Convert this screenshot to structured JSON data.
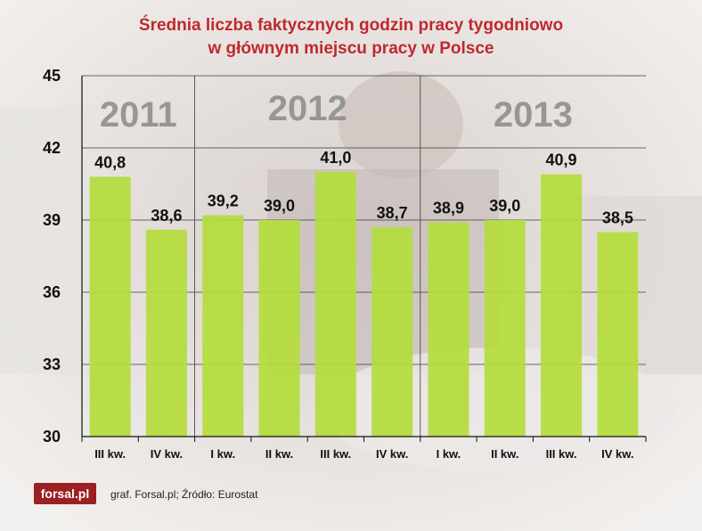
{
  "title_line1": "Średnia liczba faktycznych godzin pracy tygodniowo",
  "title_line2": "w głównym miejscu pracy w Polsce",
  "logo_text": "forsal.pl",
  "source_text": "graf. Forsal.pl; Źródło: Eurostat",
  "colors": {
    "bar": "#b3dc3c",
    "title": "#c0282e",
    "year": "#8a8a8a"
  },
  "chart_data": {
    "type": "bar",
    "title": "Średnia liczba faktycznych godzin pracy tygodniowo w głównym miejscu pracy w Polsce",
    "categories": [
      "III kw.",
      "IV kw.",
      "I kw.",
      "II kw.",
      "III kw.",
      "IV kw.",
      "I kw.",
      "II kw.",
      "III kw.",
      "IV kw."
    ],
    "values": [
      40.8,
      38.6,
      39.2,
      39.0,
      41.0,
      38.7,
      38.9,
      39.0,
      40.9,
      38.5
    ],
    "value_labels": [
      "40,8",
      "38,6",
      "39,2",
      "39,0",
      "41,0",
      "38,7",
      "38,9",
      "39,0",
      "40,9",
      "38,5"
    ],
    "ylim": [
      30,
      45
    ],
    "yticks": [
      30,
      33,
      36,
      39,
      42,
      45
    ],
    "grid": true,
    "groups": [
      {
        "label": "2011",
        "start": 0,
        "count": 2
      },
      {
        "label": "2012",
        "start": 2,
        "count": 4
      },
      {
        "label": "2013",
        "start": 6,
        "count": 4
      }
    ],
    "xlabel": "",
    "ylabel": ""
  }
}
